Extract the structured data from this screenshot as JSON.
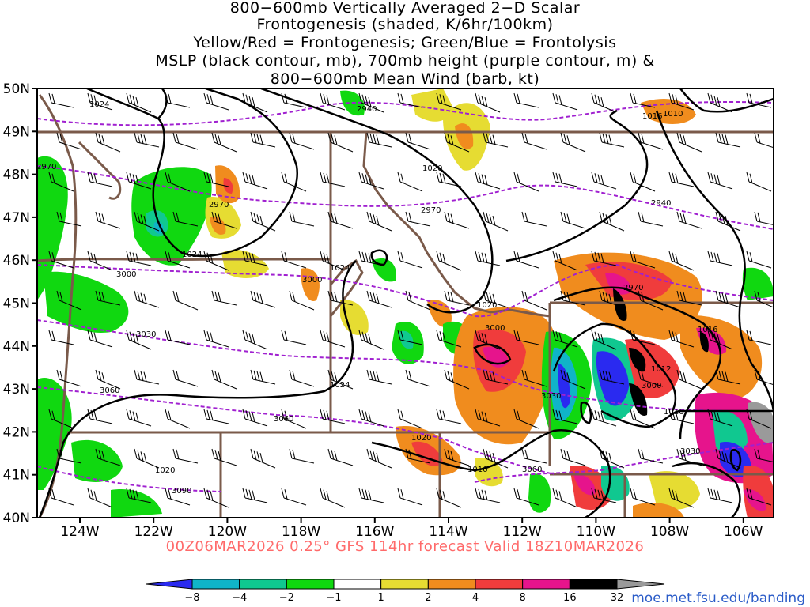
{
  "title": {
    "line1": "800−600mb Vertically Averaged 2−D Scalar",
    "line2": "Frontogenesis (shaded, K/6hr/100km)",
    "line3": "Yellow/Red = Frontogenesis;  Green/Blue = Frontolysis",
    "line4": "MSLP (black contour, mb), 700mb height (purple contour, m) &",
    "line5": "800−600mb Mean Wind (barb, kt)"
  },
  "axes": {
    "lat_labels": [
      "50N",
      "49N",
      "48N",
      "47N",
      "46N",
      "45N",
      "44N",
      "43N",
      "42N",
      "41N",
      "40N"
    ],
    "lon_labels": [
      "124W",
      "122W",
      "120W",
      "118W",
      "116W",
      "114W",
      "112W",
      "110W",
      "108W",
      "106W"
    ]
  },
  "mslp_labels": [
    "1024",
    "1020",
    "1016",
    "1016",
    "1024",
    "1024",
    "1020",
    "1016",
    "1012",
    "1016",
    "1024",
    "1020",
    "1020",
    "1016",
    "1016",
    "1010"
  ],
  "height_labels": [
    "2970",
    "2940",
    "2970",
    "2970",
    "2940",
    "2970",
    "3000",
    "3000",
    "3000",
    "3030",
    "3060",
    "3060",
    "3030",
    "3000",
    "3030",
    "3090",
    "3060"
  ],
  "colorbar": {
    "ticks": [
      "−8",
      "−4",
      "−2",
      "−1",
      "1",
      "2",
      "4",
      "8",
      "16",
      "32"
    ],
    "colors": [
      "#2a2af0",
      "#10b4c8",
      "#10c890",
      "#10d810",
      "#ffffff",
      "#e6dc32",
      "#f08c1e",
      "#f03c3c",
      "#e6148c",
      "#000000",
      "#9a9a9a"
    ]
  },
  "colors": {
    "mslp_contour": "#000000",
    "height_contour": "#a020d0",
    "borders": "#7a5a4a",
    "valid_text": "#ff6a6a"
  },
  "valid_text": "00Z06MAR2026 0.25° GFS 114hr forecast Valid 18Z10MAR2026",
  "credit": "moe.met.fsu.edu/banding"
}
